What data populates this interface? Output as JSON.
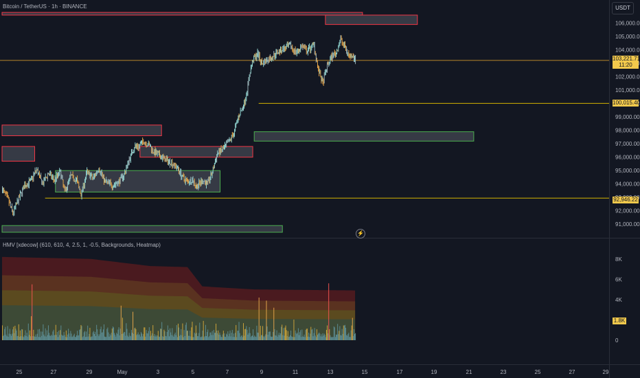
{
  "header": {
    "symbol_title": "Bitcoin / TetherUS · 1h · BINANCE",
    "currency_button": "USDT"
  },
  "price_axis": {
    "ticks": [
      "106,000.00",
      "105,000.00",
      "104,000.00",
      "103,000.00",
      "102,000.00",
      "101,000.00",
      "100,000.00",
      "99,000.00",
      "98,000.00",
      "97,000.00",
      "96,000.00",
      "95,000.00",
      "94,000.00",
      "93,000.00",
      "92,000.00",
      "91,000.00"
    ],
    "current_price": "103,221.71",
    "countdown": "11:20",
    "level_labels": [
      "100,015.40",
      "92,946.22"
    ]
  },
  "indicator": {
    "title": "HMV [xdecow] (610, 610, 4, 2.5, 1, -0.5, Backgrounds, Heatmap)",
    "axis_ticks": [
      "8K",
      "6K",
      "4K",
      "0"
    ],
    "current_volume": "1.8K"
  },
  "time_axis": {
    "labels": [
      "25",
      "27",
      "29",
      "May",
      "3",
      "5",
      "7",
      "9",
      "11",
      "13",
      "15",
      "17",
      "19",
      "21",
      "23",
      "25",
      "27",
      "29"
    ]
  },
  "colors": {
    "background": "#131722",
    "bull": "#4db6ac",
    "bear": "#ef5350",
    "accent": "#f2c94c",
    "supply_zone": "#f23645",
    "demand_zone": "#4caf50"
  },
  "chart_data": {
    "type": "candlestick",
    "title": "Bitcoin / TetherUS · 1h · BINANCE",
    "x_start": "2025-04-24 00:00",
    "x_unit_hours": 1,
    "ylim": [
      90500,
      106700
    ],
    "price_path": [
      {
        "t": 0,
        "p": 93600
      },
      {
        "t": 8,
        "p": 92800
      },
      {
        "t": 14,
        "p": 91800
      },
      {
        "t": 22,
        "p": 92900
      },
      {
        "t": 30,
        "p": 93900
      },
      {
        "t": 38,
        "p": 94200
      },
      {
        "t": 46,
        "p": 95100
      },
      {
        "t": 54,
        "p": 94000
      },
      {
        "t": 62,
        "p": 94800
      },
      {
        "t": 70,
        "p": 94300
      },
      {
        "t": 78,
        "p": 94900
      },
      {
        "t": 84,
        "p": 93400
      },
      {
        "t": 92,
        "p": 94600
      },
      {
        "t": 100,
        "p": 94300
      },
      {
        "t": 106,
        "p": 93200
      },
      {
        "t": 114,
        "p": 94900
      },
      {
        "t": 122,
        "p": 94400
      },
      {
        "t": 130,
        "p": 95200
      },
      {
        "t": 138,
        "p": 94200
      },
      {
        "t": 148,
        "p": 93900
      },
      {
        "t": 156,
        "p": 94100
      },
      {
        "t": 164,
        "p": 94700
      },
      {
        "t": 172,
        "p": 96000
      },
      {
        "t": 178,
        "p": 96800
      },
      {
        "t": 184,
        "p": 96800
      },
      {
        "t": 190,
        "p": 97200
      },
      {
        "t": 198,
        "p": 96900
      },
      {
        "t": 204,
        "p": 96400
      },
      {
        "t": 212,
        "p": 96100
      },
      {
        "t": 220,
        "p": 95800
      },
      {
        "t": 228,
        "p": 95600
      },
      {
        "t": 236,
        "p": 95200
      },
      {
        "t": 244,
        "p": 94400
      },
      {
        "t": 250,
        "p": 94200
      },
      {
        "t": 256,
        "p": 94300
      },
      {
        "t": 262,
        "p": 93800
      },
      {
        "t": 270,
        "p": 94300
      },
      {
        "t": 276,
        "p": 94000
      },
      {
        "t": 282,
        "p": 94700
      },
      {
        "t": 290,
        "p": 96300
      },
      {
        "t": 298,
        "p": 96600
      },
      {
        "t": 306,
        "p": 97200
      },
      {
        "t": 312,
        "p": 97800
      },
      {
        "t": 318,
        "p": 99000
      },
      {
        "t": 322,
        "p": 99500
      },
      {
        "t": 326,
        "p": 100000
      },
      {
        "t": 330,
        "p": 101000
      },
      {
        "t": 334,
        "p": 102400
      },
      {
        "t": 338,
        "p": 103300
      },
      {
        "t": 344,
        "p": 103700
      },
      {
        "t": 350,
        "p": 103000
      },
      {
        "t": 356,
        "p": 103200
      },
      {
        "t": 364,
        "p": 103500
      },
      {
        "t": 372,
        "p": 103900
      },
      {
        "t": 380,
        "p": 104100
      },
      {
        "t": 388,
        "p": 104300
      },
      {
        "t": 396,
        "p": 103800
      },
      {
        "t": 404,
        "p": 104300
      },
      {
        "t": 410,
        "p": 103900
      },
      {
        "t": 416,
        "p": 104200
      },
      {
        "t": 420,
        "p": 104400
      },
      {
        "t": 426,
        "p": 102500
      },
      {
        "t": 432,
        "p": 101500
      },
      {
        "t": 438,
        "p": 102800
      },
      {
        "t": 444,
        "p": 103500
      },
      {
        "t": 450,
        "p": 103800
      },
      {
        "t": 456,
        "p": 104800
      },
      {
        "t": 462,
        "p": 104200
      },
      {
        "t": 468,
        "p": 103500
      },
      {
        "t": 472,
        "p": 103700
      },
      {
        "t": 476,
        "p": 103222
      }
    ],
    "current_price": 103221.71,
    "horizontal_levels": [
      103221.71,
      100015.4,
      92946.22
    ],
    "supply_zones": [
      {
        "t_from": 0,
        "t_to": 486,
        "p_low": 106600,
        "p_high": 106800
      },
      {
        "t_from": 436,
        "t_to": 560,
        "p_low": 105900,
        "p_high": 106600
      },
      {
        "t_from": 0,
        "t_to": 215,
        "p_low": 97600,
        "p_high": 98400
      },
      {
        "t_from": 0,
        "t_to": 44,
        "p_low": 95700,
        "p_high": 96800
      },
      {
        "t_from": 186,
        "t_to": 338,
        "p_low": 96000,
        "p_high": 96800
      }
    ],
    "demand_zones": [
      {
        "t_from": 72,
        "t_to": 294,
        "p_low": 93400,
        "p_high": 95000
      },
      {
        "t_from": 340,
        "t_to": 636,
        "p_low": 97200,
        "p_high": 97900
      },
      {
        "t_from": 0,
        "t_to": 378,
        "p_low": 90400,
        "p_high": 90900
      }
    ],
    "volume_ylim": [
      0,
      9000
    ],
    "volume_bands_top": [
      {
        "t": 0,
        "v": 8200
      },
      {
        "t": 120,
        "v": 8000
      },
      {
        "t": 200,
        "v": 7300
      },
      {
        "t": 250,
        "v": 7200
      },
      {
        "t": 270,
        "v": 5300
      },
      {
        "t": 340,
        "v": 5000
      },
      {
        "t": 476,
        "v": 4900
      }
    ],
    "volume_spikes": [
      {
        "t": 40,
        "v": 5500
      },
      {
        "t": 160,
        "v": 3400
      },
      {
        "t": 176,
        "v": 2800
      },
      {
        "t": 346,
        "v": 4200
      },
      {
        "t": 356,
        "v": 3900
      },
      {
        "t": 366,
        "v": 3200
      },
      {
        "t": 440,
        "v": 5600
      },
      {
        "t": 472,
        "v": 2200
      }
    ],
    "current_volume": 1800,
    "xlabel": "",
    "ylabel": ""
  }
}
